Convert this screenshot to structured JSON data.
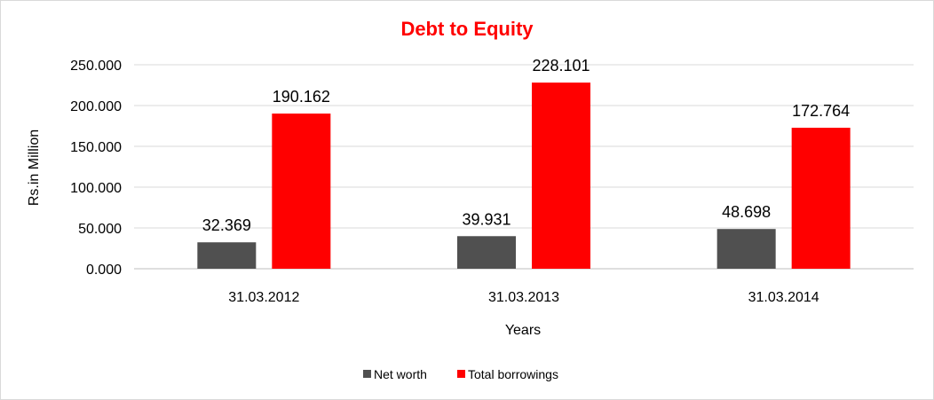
{
  "chart_data": {
    "type": "bar",
    "title": "Debt to Equity",
    "xlabel": "Years",
    "ylabel": "Rs.in Million",
    "categories": [
      "31.03.2012",
      "31.03.2013",
      "31.03.2014"
    ],
    "series": [
      {
        "name": "Net worth",
        "color": "#505050",
        "values": [
          32.369,
          39.931,
          48.698
        ],
        "labels": [
          "32.369",
          "39.931",
          "48.698"
        ]
      },
      {
        "name": "Total borrowings",
        "color": "#ff0000",
        "values": [
          190.162,
          228.101,
          172.764
        ],
        "labels": [
          "190.162",
          "228.101",
          "172.764"
        ]
      }
    ],
    "ylim": [
      0,
      250
    ],
    "yticks": [
      0,
      50,
      100,
      150,
      200,
      250
    ],
    "ytick_labels": [
      "0.000",
      "50.000",
      "100.000",
      "150.000",
      "200.000",
      "250.000"
    ],
    "grid": true,
    "legend_position": "bottom",
    "title_color": "#ff0000"
  }
}
